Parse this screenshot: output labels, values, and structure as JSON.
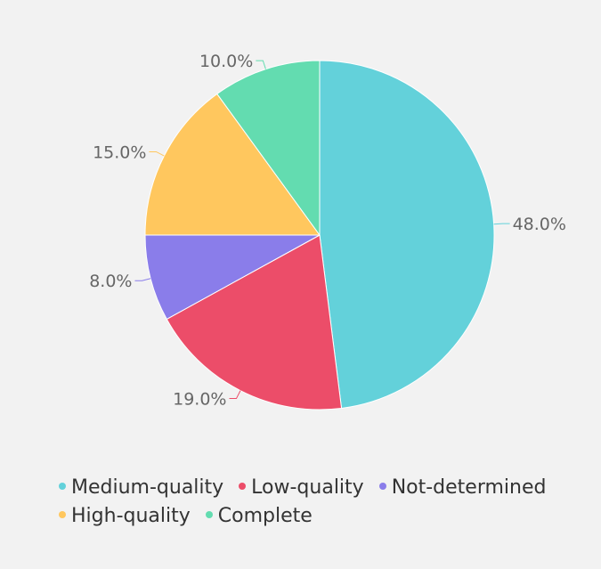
{
  "chart_data": {
    "type": "pie",
    "title": "",
    "categories": [
      "Medium-quality",
      "Low-quality",
      "Not-determined",
      "High-quality",
      "Complete"
    ],
    "values": [
      48.0,
      19.0,
      8.0,
      15.0,
      10.0
    ],
    "value_labels": [
      "48.0%",
      "19.0%",
      "8.0%",
      "15.0%",
      "10.0%"
    ],
    "colors": [
      "#63d1da",
      "#ec4d69",
      "#8a7dea",
      "#ffc75e",
      "#63dcb0"
    ],
    "legend_position": "bottom-left"
  },
  "legend": {
    "items": [
      {
        "label": "Medium-quality",
        "color": "#63d1da"
      },
      {
        "label": "Low-quality",
        "color": "#ec4d69"
      },
      {
        "label": "Not-determined",
        "color": "#8a7dea"
      },
      {
        "label": "High-quality",
        "color": "#ffc75e"
      },
      {
        "label": "Complete",
        "color": "#63dcb0"
      }
    ]
  }
}
